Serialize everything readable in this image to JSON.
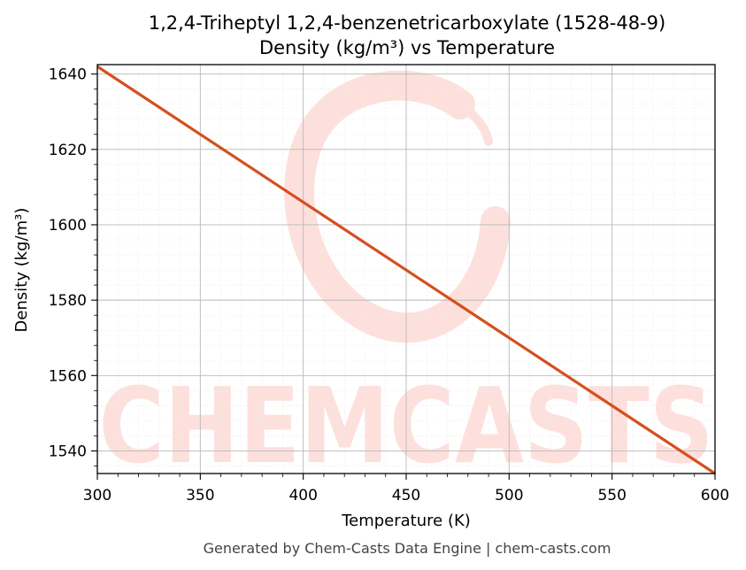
{
  "chart_data": {
    "type": "line",
    "title": "1,2,4-Triheptyl 1,2,4-benzenetricarboxylate (1528-48-9)",
    "subtitle": "Density (kg/m³) vs Temperature",
    "xlabel": "Temperature (K)",
    "ylabel": "Density (kg/m³)",
    "xlim": [
      300,
      600
    ],
    "ylim": [
      1534,
      1642.5
    ],
    "xticks": [
      300,
      350,
      400,
      450,
      500,
      550,
      600
    ],
    "yticks": [
      1540,
      1560,
      1580,
      1600,
      1620,
      1640
    ],
    "grid": true,
    "series": [
      {
        "color": "#d4501e",
        "x": [
          300,
          350,
          400,
          450,
          500,
          550,
          600
        ],
        "y": [
          1642.0,
          1624.0,
          1606.0,
          1588.0,
          1570.0,
          1552.0,
          1534.0
        ]
      }
    ]
  },
  "watermark": {
    "text": "CHEMCASTS",
    "color": "#fde0dc",
    "icon": "chemcasts-logo-icon"
  },
  "footer": {
    "text": "Generated by Chem-Casts Data Engine | chem-casts.com"
  }
}
